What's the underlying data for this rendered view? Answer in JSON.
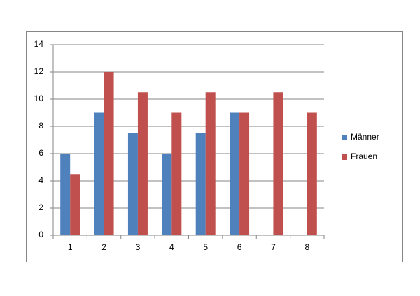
{
  "chart_data": {
    "type": "bar",
    "categories": [
      "1",
      "2",
      "3",
      "4",
      "5",
      "6",
      "7",
      "8"
    ],
    "series": [
      {
        "name": "Männer",
        "color": "#4f81bd",
        "values": [
          6,
          9,
          7.5,
          6,
          7.5,
          9,
          null,
          null
        ]
      },
      {
        "name": "Frauen",
        "color": "#c0504d",
        "values": [
          4.5,
          12,
          10.5,
          9,
          10.5,
          9,
          10.5,
          9
        ]
      }
    ],
    "ylim": [
      0,
      14
    ],
    "yticks": [
      0,
      2,
      4,
      6,
      8,
      10,
      12,
      14
    ],
    "grid": true,
    "legend": "right"
  }
}
